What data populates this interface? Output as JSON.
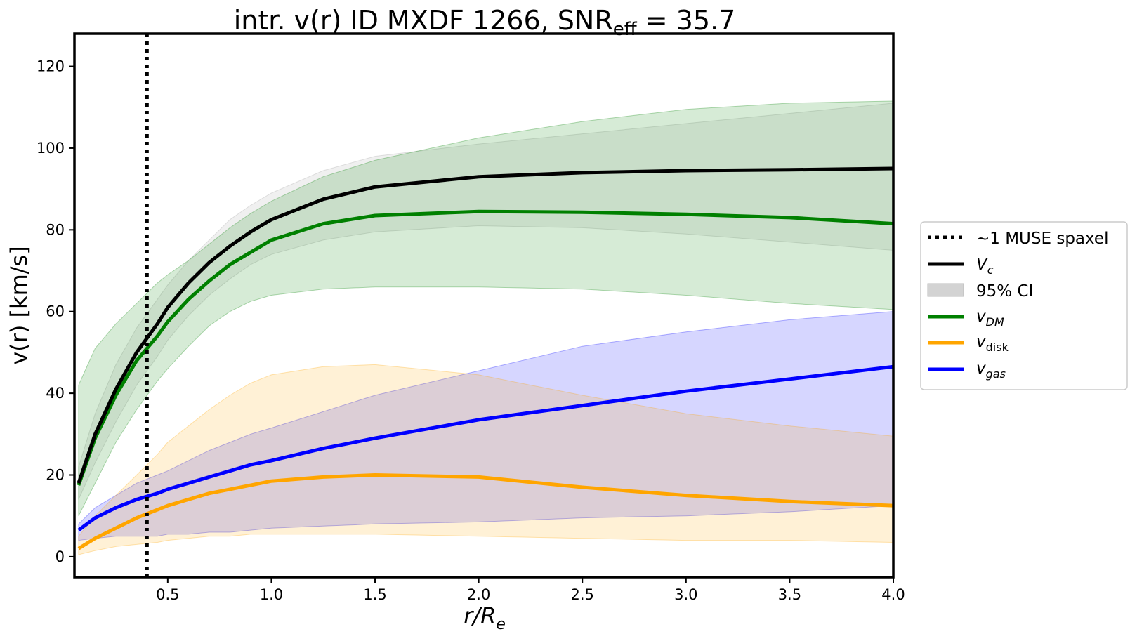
{
  "chart_data": {
    "type": "line",
    "title_main": "intr. v(r) ID MXDF 1266, SNR",
    "title_sub": "eff",
    "title_tail": " = 35.7",
    "xlabel_main": "r/R",
    "xlabel_sub": "e",
    "ylabel": "v(r) [km/s]",
    "xlim": [
      0.05,
      4.0
    ],
    "ylim": [
      -5,
      128
    ],
    "xticks": [
      0.5,
      1.0,
      1.5,
      2.0,
      2.5,
      3.0,
      3.5,
      4.0
    ],
    "xtick_labels": [
      "0.5",
      "1.0",
      "1.5",
      "2.0",
      "2.5",
      "3.0",
      "3.5",
      "4.0"
    ],
    "yticks": [
      0,
      20,
      40,
      60,
      80,
      100,
      120
    ],
    "ytick_labels": [
      "0",
      "20",
      "40",
      "60",
      "80",
      "100",
      "120"
    ],
    "x": [
      0.07,
      0.15,
      0.25,
      0.35,
      0.45,
      0.5,
      0.6,
      0.7,
      0.8,
      0.9,
      1.0,
      1.25,
      1.5,
      2.0,
      2.5,
      3.0,
      3.5,
      4.0
    ],
    "muse_spaxel_x": 0.4,
    "series": [
      {
        "name": "Vc",
        "color": "#000000",
        "values": [
          18,
          30,
          41,
          50,
          57,
          61,
          67,
          72,
          76,
          79.5,
          82.5,
          87.5,
          90.5,
          93,
          94,
          94.5,
          94.7,
          95
        ]
      },
      {
        "name": "vDM",
        "color": "#008000",
        "values": [
          17.5,
          29,
          39.5,
          48,
          54,
          57.5,
          63,
          67.5,
          71.5,
          74.5,
          77.5,
          81.5,
          83.5,
          84.5,
          84.3,
          83.8,
          83,
          81.5
        ]
      },
      {
        "name": "vdisk",
        "color": "#ffa500",
        "values": [
          2,
          4.5,
          7,
          9.5,
          11.5,
          12.5,
          14,
          15.5,
          16.5,
          17.5,
          18.5,
          19.5,
          20,
          19.5,
          17,
          15,
          13.5,
          12.5
        ]
      },
      {
        "name": "vgas",
        "color": "#0000ff",
        "values": [
          6.5,
          9.5,
          12,
          14,
          15.5,
          16.5,
          18,
          19.5,
          21,
          22.5,
          23.5,
          26.5,
          29,
          33.5,
          37,
          40.5,
          43.5,
          46.5
        ]
      }
    ],
    "bands": [
      {
        "name": "vgas 95% CI",
        "color": "#0000ff",
        "lower": [
          4,
          4.5,
          5,
          5,
          5,
          5.5,
          5.5,
          6,
          6,
          6.5,
          7,
          7.5,
          8,
          8.5,
          9.5,
          10,
          11,
          12.5
        ],
        "upper": [
          8,
          12,
          15,
          18,
          20,
          21,
          23.5,
          26,
          28,
          30,
          31.5,
          35.5,
          39.5,
          45.5,
          51.5,
          55,
          58,
          60
        ]
      },
      {
        "name": "vdisk 95% CI",
        "color": "#ffa500",
        "lower": [
          0.5,
          1.5,
          2.5,
          3,
          3.5,
          4,
          4.5,
          5,
          5,
          5.5,
          5.5,
          5.5,
          5.5,
          5,
          4.5,
          4,
          4,
          3.5
        ],
        "upper": [
          5,
          10,
          15,
          20,
          25,
          28,
          32,
          36,
          39.5,
          42.5,
          44.5,
          46.5,
          47,
          44.5,
          39.5,
          35,
          32,
          29.5
        ]
      },
      {
        "name": "Vc 95% CI",
        "color": "#a0a0a0",
        "lower": [
          14,
          23,
          33,
          42,
          49,
          53,
          59,
          64,
          68,
          71.5,
          74,
          77.5,
          79.5,
          81,
          80.5,
          79,
          77,
          75
        ],
        "upper": [
          22,
          35,
          47,
          56,
          63,
          66.5,
          72.5,
          77.5,
          82.5,
          86,
          89,
          94.5,
          98,
          101,
          103.5,
          106,
          108.5,
          111
        ]
      },
      {
        "name": "vDM 95% CI",
        "color": "#008000",
        "lower": [
          10,
          18,
          28,
          36,
          43,
          46,
          51.5,
          56.5,
          60,
          62.5,
          64,
          65.5,
          66,
          66,
          65.5,
          64,
          62,
          60.5
        ],
        "upper": [
          42,
          51,
          57,
          62,
          67,
          69,
          72.5,
          76.5,
          80.5,
          84,
          87,
          93,
          97,
          102.5,
          106.5,
          109.5,
          111,
          111.5
        ]
      }
    ],
    "legend": {
      "placement": "outside-right",
      "entries": [
        {
          "label": "~1 MUSE spaxel",
          "style": "dotted",
          "color": "#000000"
        },
        {
          "label_main": "V",
          "label_sub": "c",
          "style": "line",
          "color": "#000000"
        },
        {
          "label": "95% CI",
          "style": "patch",
          "color": "#d3d3d3"
        },
        {
          "label_main": "v",
          "label_sub": "DM",
          "style": "line",
          "color": "#008000"
        },
        {
          "label_main": "v",
          "label_sub": "disk",
          "style": "line",
          "color": "#ffa500"
        },
        {
          "label_main": "v",
          "label_sub": "gas",
          "style": "line",
          "color": "#0000ff"
        }
      ]
    }
  }
}
